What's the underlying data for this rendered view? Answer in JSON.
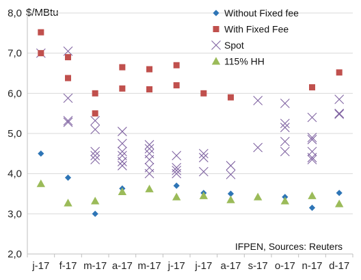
{
  "chart_data": {
    "type": "scatter",
    "title": "",
    "ylabel": "$/MBtu",
    "xlabel": "",
    "ylim": [
      2.0,
      8.0
    ],
    "yticks": [
      "2,0",
      "3,0",
      "4,0",
      "5,0",
      "6,0",
      "7,0",
      "8,0"
    ],
    "categories": [
      "j-17",
      "f-17",
      "m-17",
      "a-17",
      "m-17",
      "j-17",
      "j-17",
      "a-17",
      "s-17",
      "o-17",
      "n-17",
      "d-17"
    ],
    "grid": "horizontal",
    "legend_position": "top-right",
    "annotation": "IFPEN, Sources: Reuters",
    "series": [
      {
        "name": "Without Fixed fee",
        "marker": "diamond",
        "color": "#2E75B6",
        "points": [
          [
            0,
            4.5
          ],
          [
            1,
            3.9
          ],
          [
            2,
            3.0
          ],
          [
            3,
            3.63
          ],
          [
            5,
            3.7
          ],
          [
            6,
            3.52
          ],
          [
            7,
            3.5
          ],
          [
            9,
            3.42
          ],
          [
            10,
            3.15
          ],
          [
            11,
            3.52
          ]
        ]
      },
      {
        "name": "With Fixed Fee",
        "marker": "square",
        "color": "#C0504D",
        "points": [
          [
            0,
            7.52
          ],
          [
            0,
            7.0
          ],
          [
            1,
            6.9
          ],
          [
            1,
            6.38
          ],
          [
            2,
            6.0
          ],
          [
            2,
            5.5
          ],
          [
            3,
            6.65
          ],
          [
            3,
            6.12
          ],
          [
            4,
            6.6
          ],
          [
            4,
            6.1
          ],
          [
            5,
            6.7
          ],
          [
            5,
            6.2
          ],
          [
            6,
            6.0
          ],
          [
            7,
            5.9
          ],
          [
            10,
            6.15
          ],
          [
            11,
            6.52
          ]
        ]
      },
      {
        "name": "Spot",
        "marker": "x",
        "color": "#8064A2",
        "points": [
          [
            0,
            7.0
          ],
          [
            1,
            7.05
          ],
          [
            1,
            5.88
          ],
          [
            1,
            5.32
          ],
          [
            1,
            5.28
          ],
          [
            2,
            5.32
          ],
          [
            2,
            5.1
          ],
          [
            2,
            4.55
          ],
          [
            2,
            4.45
          ],
          [
            2,
            4.35
          ],
          [
            3,
            5.05
          ],
          [
            3,
            4.75
          ],
          [
            3,
            4.55
          ],
          [
            3,
            4.45
          ],
          [
            3,
            4.3
          ],
          [
            3,
            4.2
          ],
          [
            4,
            4.72
          ],
          [
            4,
            4.62
          ],
          [
            4,
            4.5
          ],
          [
            4,
            4.35
          ],
          [
            4,
            4.15
          ],
          [
            4,
            4.0
          ],
          [
            5,
            4.45
          ],
          [
            5,
            4.15
          ],
          [
            5,
            4.08
          ],
          [
            5,
            4.0
          ],
          [
            6,
            4.5
          ],
          [
            6,
            4.4
          ],
          [
            6,
            4.05
          ],
          [
            7,
            4.2
          ],
          [
            7,
            3.98
          ],
          [
            8,
            5.82
          ],
          [
            8,
            4.65
          ],
          [
            9,
            5.75
          ],
          [
            9,
            5.25
          ],
          [
            9,
            5.15
          ],
          [
            9,
            4.8
          ],
          [
            9,
            4.55
          ],
          [
            10,
            5.4
          ],
          [
            10,
            4.9
          ],
          [
            10,
            4.85
          ],
          [
            10,
            4.55
          ],
          [
            10,
            4.4
          ],
          [
            10,
            4.35
          ],
          [
            11,
            5.85
          ],
          [
            11,
            5.5
          ],
          [
            11,
            5.48
          ]
        ]
      },
      {
        "name": "115% HH",
        "marker": "triangle",
        "color": "#9BBB59",
        "points": [
          [
            0,
            3.75
          ],
          [
            1,
            3.27
          ],
          [
            2,
            3.32
          ],
          [
            3,
            3.55
          ],
          [
            4,
            3.62
          ],
          [
            5,
            3.42
          ],
          [
            6,
            3.45
          ],
          [
            7,
            3.35
          ],
          [
            8,
            3.42
          ],
          [
            9,
            3.32
          ],
          [
            10,
            3.45
          ],
          [
            11,
            3.25
          ]
        ]
      }
    ]
  }
}
